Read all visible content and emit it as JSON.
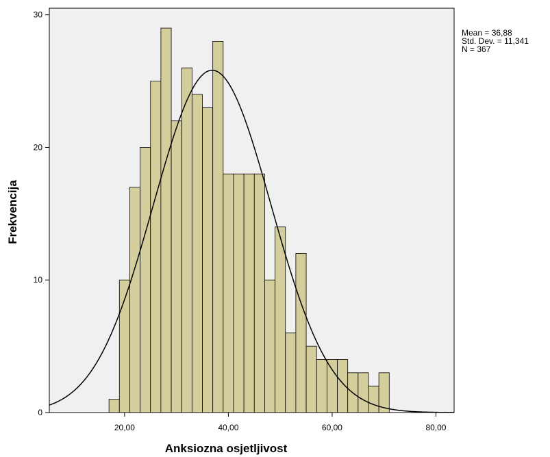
{
  "chart_data": {
    "type": "bar",
    "subtype": "histogram",
    "xlabel": "Anksiozna osjetljivost",
    "ylabel": "Frekvencija",
    "xlim": [
      5.5,
      83.5
    ],
    "ylim": [
      0,
      30.5
    ],
    "x_ticks": [
      20,
      40,
      60,
      80
    ],
    "x_tick_labels": [
      "20,00",
      "40,00",
      "60,00",
      "80,00"
    ],
    "y_ticks": [
      0,
      10,
      20,
      30
    ],
    "y_tick_labels": [
      "0",
      "10",
      "20",
      "30"
    ],
    "bin_width": 2,
    "bins_start": [
      17,
      19,
      21,
      23,
      25,
      27,
      29,
      31,
      33,
      35,
      37,
      39,
      41,
      43,
      45,
      47,
      49,
      51,
      53,
      55,
      57,
      59,
      61,
      63,
      65,
      67,
      69
    ],
    "values": [
      1,
      10,
      17,
      20,
      25,
      29,
      22,
      26,
      24,
      23,
      28,
      18,
      18,
      18,
      18,
      10,
      14,
      6,
      12,
      5,
      4,
      4,
      4,
      3,
      3,
      2,
      3
    ],
    "normal_curve": {
      "mean": 36.88,
      "sd": 11.341,
      "n": 367
    },
    "stats_box": [
      "Mean = 36,88",
      "Std. Dev. = 11,341",
      "N = 367"
    ],
    "grid": false,
    "colors": {
      "bar_fill": "#d4cd9c",
      "bar_edge": "#000000",
      "plot_bg": "#f0f0f0",
      "curve": "#000000"
    }
  }
}
